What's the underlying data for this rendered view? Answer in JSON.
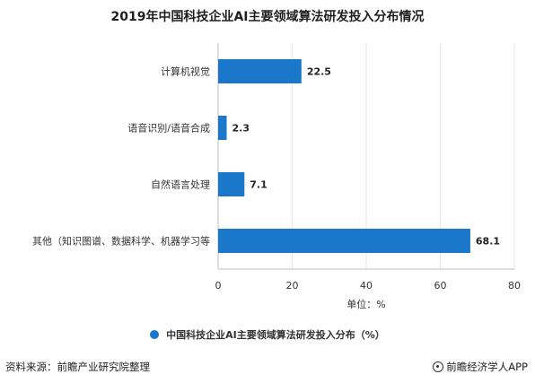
{
  "title": "2019年中国科技企业AI主要领域算法研发投入分布情况",
  "colors": {
    "bar": "#1a77c9",
    "axis": "#bfbfbf",
    "text": "#333333"
  },
  "chart_data": {
    "type": "bar",
    "orientation": "horizontal",
    "categories": [
      "计算机视觉",
      "语音识别/语音合成",
      "自然语言处理",
      "其他（知识图谱、数据科学、机器学习等"
    ],
    "series": [
      {
        "name": "中国科技企业AI主要领域算法研发投入分布（%）",
        "values": [
          22.5,
          2.3,
          7.1,
          68.1
        ]
      }
    ],
    "xlim": [
      0,
      80
    ],
    "xticks": [
      0,
      20,
      40,
      60,
      80
    ],
    "xlabel": "单位：%",
    "grid": true,
    "legend": "bottom"
  },
  "footer": {
    "source": "资料来源：前瞻产业研究院整理",
    "brand": "前瞻经济学人APP",
    "brand_icon": "brand-logo-icon"
  }
}
